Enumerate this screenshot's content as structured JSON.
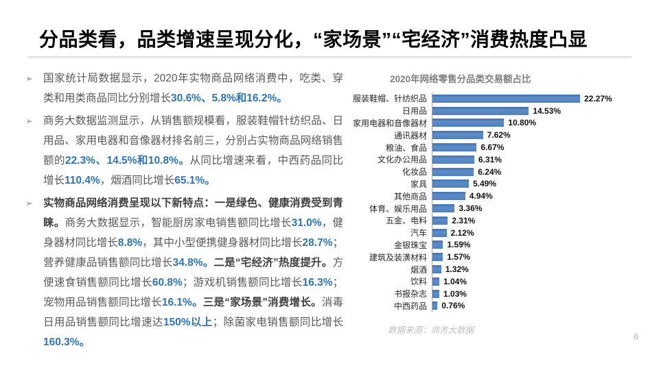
{
  "slide": {
    "title": "分品类看，品类增速呈现分化，“家场景”“宅经济”消费热度凸显",
    "page_number": "6"
  },
  "bullets": [
    {
      "marker": "➢",
      "segments": [
        {
          "style": "normal",
          "text": "国家统计局数据显示，2020年实物商品网络消费中，吃类、穿类和用类商品同比分别增长"
        },
        {
          "style": "em",
          "text": "30.6%、5.8%和16.2%。"
        }
      ]
    },
    {
      "marker": "➢",
      "segments": [
        {
          "style": "normal",
          "text": "商务大数据监测显示，从销售额规模看，服装鞋帽针纺织品、日用品、家用电器和音像器材排名前三，分别占实物商品网络销售额的"
        },
        {
          "style": "em",
          "text": "22.3%、14.5%和10.8%。"
        },
        {
          "style": "normal",
          "text": "从同比增速来看，中西药品同比增长"
        },
        {
          "style": "em",
          "text": "110.4%"
        },
        {
          "style": "normal",
          "text": "，烟酒同比增长"
        },
        {
          "style": "em",
          "text": "65.1%。"
        }
      ]
    },
    {
      "marker": "➢",
      "segments": [
        {
          "style": "strong",
          "text": "实物商品网络消费呈现以下新特点：一是绿色、健康消费受到青睐。"
        },
        {
          "style": "normal",
          "text": "商务大数据显示，智能厨房家电销售额同比增长"
        },
        {
          "style": "em",
          "text": "31.0%"
        },
        {
          "style": "normal",
          "text": "，健身器材同比增长"
        },
        {
          "style": "em",
          "text": "8.8%"
        },
        {
          "style": "normal",
          "text": "，其中小型便携健身器材同比增长"
        },
        {
          "style": "em",
          "text": "28.7%"
        },
        {
          "style": "normal",
          "text": "；营养健康品销售额同比增长"
        },
        {
          "style": "em",
          "text": "34.8%。"
        },
        {
          "style": "strong",
          "text": "二是“宅经济”热度提升。"
        },
        {
          "style": "normal",
          "text": "方便速食销售额同比增长"
        },
        {
          "style": "em",
          "text": "60.8%"
        },
        {
          "style": "normal",
          "text": "；游戏机销售额同比增长"
        },
        {
          "style": "em",
          "text": "16.3%"
        },
        {
          "style": "normal",
          "text": "；宠物用品销售额同比增长"
        },
        {
          "style": "em",
          "text": "16.1%。"
        },
        {
          "style": "strong",
          "text": "三是“家场景”消费增长。"
        },
        {
          "style": "normal",
          "text": "消毒日用品销售额同比增速达"
        },
        {
          "style": "em",
          "text": "150%以上"
        },
        {
          "style": "normal",
          "text": "；除菌家电销售额同比增长"
        },
        {
          "style": "em",
          "text": "160.3%。"
        }
      ]
    }
  ],
  "chart_data": {
    "type": "bar",
    "orientation": "horizontal",
    "title": "2020年网络零售分品类交易额占比",
    "categories": [
      "服装鞋帽、针纺织品",
      "日用品",
      "家用电器和音像器材",
      "通讯器材",
      "粮油、食品",
      "文化办公用品",
      "化妆品",
      "家具",
      "其他商品",
      "体育、娱乐用品",
      "五金、电料",
      "汽车",
      "金银珠宝",
      "建筑及装潢材料",
      "烟酒",
      "饮料",
      "书报杂志",
      "中西药品"
    ],
    "values": [
      22.27,
      14.53,
      10.8,
      7.62,
      6.67,
      6.31,
      6.24,
      5.49,
      4.94,
      3.36,
      2.31,
      2.12,
      1.59,
      1.57,
      1.32,
      1.04,
      1.03,
      0.76
    ],
    "value_labels": [
      "22.27%",
      "14.53%",
      "10.80%",
      "7.62%",
      "6.67%",
      "6.31%",
      "6.24%",
      "5.49%",
      "4.94%",
      "3.36%",
      "2.31%",
      "2.12%",
      "1.59%",
      "1.57%",
      "1.32%",
      "1.04%",
      "1.03%",
      "0.76%"
    ],
    "xlim": [
      0,
      24
    ],
    "unit": "%",
    "legend": "none",
    "grid": "off",
    "data_labels": "shown at bar end",
    "bar_color": "#4F81BD",
    "source": "数据来源：商务大数据"
  },
  "colors": {
    "title_text": "#000000",
    "body_text": "#595959",
    "accent_blue": "#2E75B6",
    "bar_blue": "#4F81BD",
    "chart_title_gray": "#7f7f7f",
    "source_gray": "#c0c0c0"
  }
}
